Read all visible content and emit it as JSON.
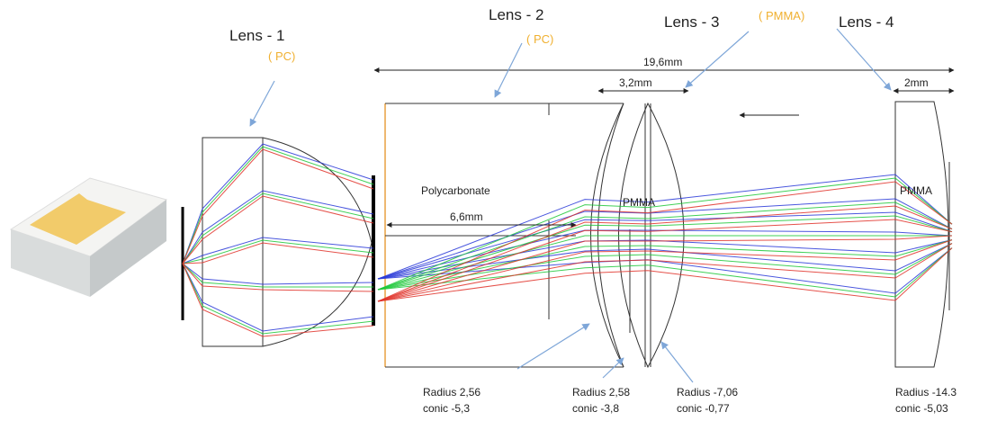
{
  "lenses": [
    {
      "label": "Lens - 1",
      "material": "( PC)"
    },
    {
      "label": "Lens - 2",
      "material": "( PC)"
    },
    {
      "label": "Lens - 3",
      "material": "( PMMA)"
    },
    {
      "label": "Lens - 4"
    }
  ],
  "dimensions": {
    "total": "19,6mm",
    "lens3": "3,2mm",
    "lens4": "2mm",
    "lens2": "6,6mm"
  },
  "materials": {
    "lens2": "Polycarbonate",
    "lens3": "PMMA",
    "lens4": "PMMA"
  },
  "surfaces": [
    {
      "radius": "Radius 2,56",
      "conic": "conic  -5,3"
    },
    {
      "radius": "Radius 2,58",
      "conic": "conic -3,8"
    },
    {
      "radius": "Radius -7,06",
      "conic": "conic -0,77"
    },
    {
      "radius": "Radius -14.3",
      "conic": "conic -5,03"
    }
  ]
}
